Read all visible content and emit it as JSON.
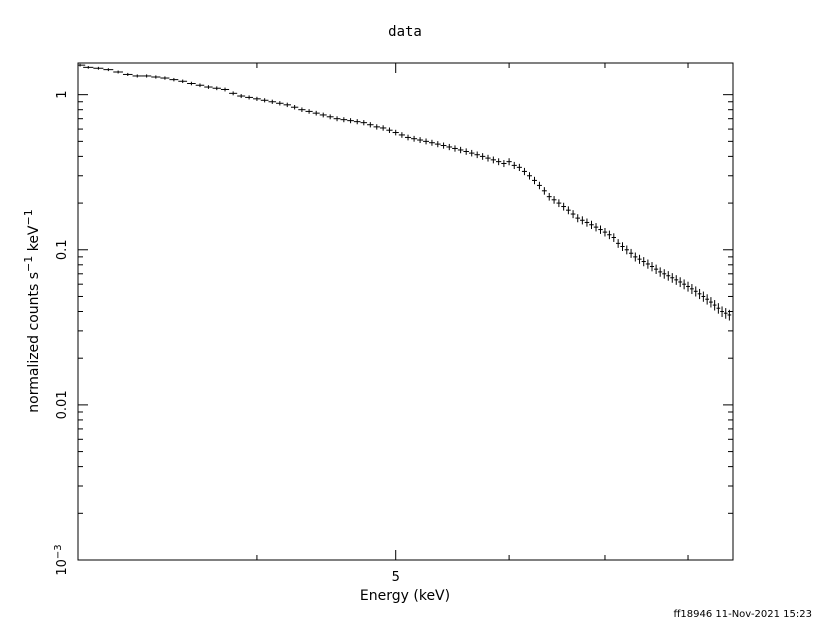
{
  "chart_data": {
    "type": "scatter",
    "title": "data",
    "xlabel": "Energy (keV)",
    "ylabel": {
      "base": "normalized counts s",
      "sup1": "−1",
      "mid": " keV",
      "sup2": "−1"
    },
    "x_scale": "log",
    "y_scale": "log",
    "xlim": [
      3.0,
      8.6
    ],
    "ylim": [
      0.001,
      1.6
    ],
    "x_ticks": [
      {
        "value": 5,
        "label": "5"
      }
    ],
    "y_ticks": [
      {
        "value": 1,
        "label": "1"
      },
      {
        "value": 0.1,
        "label": "0.1"
      },
      {
        "value": 0.01,
        "label": "0.01"
      },
      {
        "value": 0.001,
        "label": "10",
        "sup": "−3"
      }
    ],
    "grid": false,
    "series": [
      {
        "x": [
          3.01,
          3.05,
          3.1,
          3.15,
          3.2,
          3.25,
          3.3,
          3.35,
          3.4,
          3.45,
          3.5,
          3.55,
          3.6,
          3.65,
          3.7,
          3.75,
          3.8,
          3.85,
          3.9,
          3.95,
          4.0,
          4.05,
          4.1,
          4.15,
          4.2,
          4.25,
          4.3,
          4.35,
          4.4,
          4.45,
          4.5,
          4.55,
          4.6,
          4.65,
          4.7,
          4.75,
          4.8,
          4.85,
          4.9,
          4.95,
          5.0,
          5.05,
          5.1,
          5.15,
          5.2,
          5.25,
          5.3,
          5.35,
          5.4,
          5.45,
          5.5,
          5.55,
          5.6,
          5.65,
          5.7,
          5.75,
          5.8,
          5.85,
          5.9,
          5.95,
          6.0,
          6.05,
          6.1,
          6.15,
          6.2,
          6.25,
          6.3,
          6.35,
          6.4,
          6.45,
          6.5,
          6.55,
          6.6,
          6.65,
          6.7,
          6.75,
          6.8,
          6.85,
          6.9,
          6.95,
          7.0,
          7.05,
          7.1,
          7.15,
          7.2,
          7.25,
          7.3,
          7.35,
          7.4,
          7.45,
          7.5,
          7.55,
          7.6,
          7.65,
          7.7,
          7.75,
          7.8,
          7.85,
          7.9,
          7.95,
          8.0,
          8.05,
          8.1,
          8.15,
          8.2,
          8.25,
          8.3,
          8.35,
          8.4,
          8.45,
          8.5,
          8.55
        ],
        "y": [
          1.55,
          1.5,
          1.48,
          1.45,
          1.4,
          1.35,
          1.32,
          1.32,
          1.3,
          1.28,
          1.25,
          1.22,
          1.18,
          1.15,
          1.12,
          1.1,
          1.08,
          1.02,
          0.98,
          0.96,
          0.94,
          0.92,
          0.9,
          0.88,
          0.86,
          0.83,
          0.8,
          0.78,
          0.76,
          0.74,
          0.72,
          0.7,
          0.69,
          0.68,
          0.67,
          0.66,
          0.64,
          0.62,
          0.61,
          0.59,
          0.57,
          0.55,
          0.53,
          0.52,
          0.51,
          0.5,
          0.49,
          0.48,
          0.47,
          0.46,
          0.45,
          0.44,
          0.43,
          0.42,
          0.41,
          0.4,
          0.39,
          0.38,
          0.37,
          0.36,
          0.37,
          0.35,
          0.34,
          0.32,
          0.3,
          0.28,
          0.26,
          0.24,
          0.22,
          0.21,
          0.2,
          0.19,
          0.18,
          0.17,
          0.16,
          0.155,
          0.15,
          0.145,
          0.14,
          0.135,
          0.13,
          0.125,
          0.12,
          0.11,
          0.105,
          0.1,
          0.095,
          0.09,
          0.087,
          0.084,
          0.081,
          0.078,
          0.075,
          0.072,
          0.07,
          0.068,
          0.066,
          0.064,
          0.062,
          0.06,
          0.058,
          0.056,
          0.054,
          0.052,
          0.05,
          0.048,
          0.046,
          0.044,
          0.042,
          0.04,
          0.039,
          0.038
        ]
      }
    ]
  },
  "footer": {
    "stamp": "ff18946 11-Nov-2021 15:23"
  }
}
